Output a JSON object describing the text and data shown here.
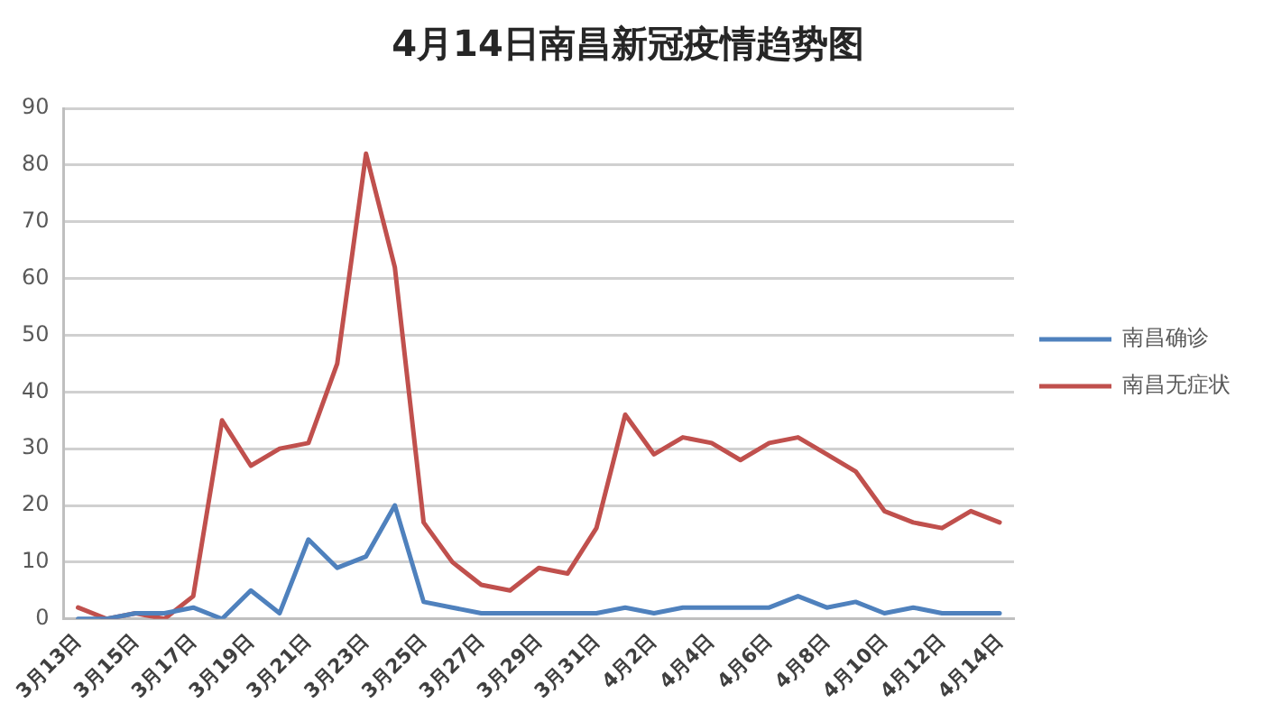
{
  "chart_data": {
    "type": "line",
    "title": "4月14日南昌新冠疫情趋势图",
    "categories": [
      "3月13日",
      null,
      "3月15日",
      null,
      "3月17日",
      null,
      "3月19日",
      null,
      "3月21日",
      null,
      "3月23日",
      null,
      "3月25日",
      null,
      "3月27日",
      null,
      "3月29日",
      null,
      "3月31日",
      null,
      "4月2日",
      null,
      "4月4日",
      null,
      "4月6日",
      null,
      "4月8日",
      null,
      "4月10日",
      null,
      "4月12日",
      null,
      "4月14日"
    ],
    "series": [
      {
        "name": "南昌确诊",
        "color": "#4f81bd",
        "values": [
          0,
          0,
          1,
          1,
          2,
          0,
          5,
          1,
          14,
          9,
          11,
          20,
          3,
          2,
          1,
          1,
          1,
          1,
          1,
          2,
          1,
          2,
          2,
          2,
          2,
          4,
          2,
          3,
          1,
          2,
          1,
          1,
          1
        ]
      },
      {
        "name": "南昌无症状",
        "color": "#c0504d",
        "values": [
          2,
          0,
          1,
          0,
          4,
          35,
          27,
          30,
          31,
          45,
          82,
          62,
          17,
          10,
          6,
          5,
          9,
          8,
          16,
          36,
          29,
          32,
          31,
          28,
          31,
          32,
          29,
          26,
          19,
          17,
          16,
          19,
          17
        ]
      }
    ],
    "ylim": [
      0,
      90
    ],
    "yticks": [
      0,
      10,
      20,
      30,
      40,
      50,
      60,
      70,
      80,
      90
    ],
    "grid": "y",
    "legend": "right",
    "marker": "none",
    "line_style": "solid"
  }
}
